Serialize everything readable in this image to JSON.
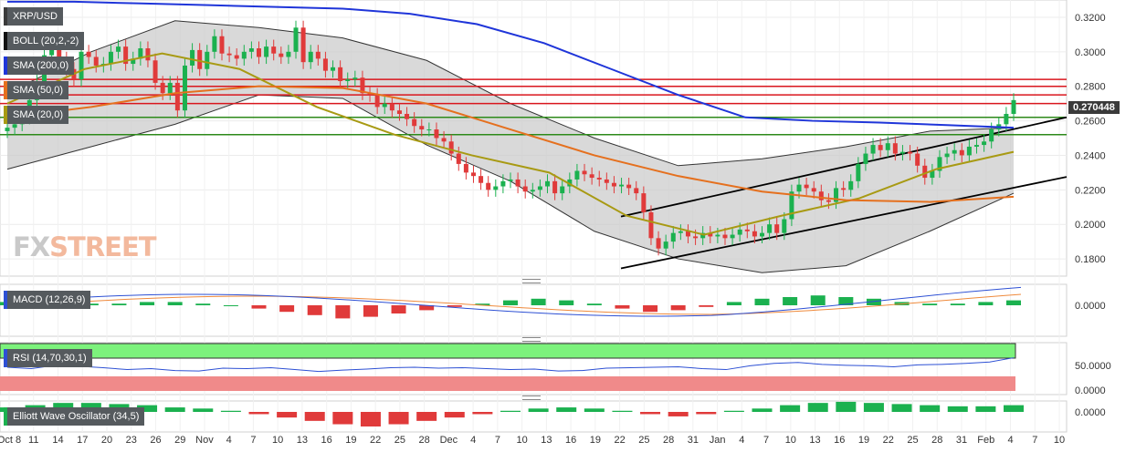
{
  "legends": {
    "symbol": "XRP/USD",
    "boll": "BOLL (20,2,-2)",
    "sma200": "SMA (200,0)",
    "sma50": "SMA (50,0)",
    "sma20": "SMA (20,0)",
    "macd": "MACD (12,26,9)",
    "rsi": "RSI (14,70,30,1)",
    "ewo": "Elliott Wave Oscillator (34,5)"
  },
  "logo": {
    "part1": "FX",
    "part2": "STREET"
  },
  "price_tag": "0.270448",
  "colors": {
    "up": "#1bb14f",
    "down": "#e03a3a",
    "sma200": "#1f35d9",
    "sma50": "#e5701e",
    "sma20": "#a89a13",
    "boll_fill": "#c9c9c9",
    "res": "#d9161d",
    "sup": "#2d8a1a",
    "rsi_green": "#7cf27c",
    "rsi_red": "#f08a8a",
    "macd_line": "#2d50d4",
    "signal_line": "#ef8a3c"
  },
  "chart_data": [
    {
      "type": "candlestick",
      "title": "XRP/USD",
      "ylim": [
        0.17,
        0.33
      ],
      "y_ticks": [
        "0.3200",
        "0.3000",
        "0.2800",
        "0.2600",
        "0.2400",
        "0.2200",
        "0.2000",
        "0.1800"
      ],
      "x_tick_labels": [
        "Oct 8",
        "11",
        "14",
        "17",
        "20",
        "23",
        "26",
        "29",
        "Nov",
        "4",
        "7",
        "10",
        "13",
        "16",
        "19",
        "22",
        "25",
        "28",
        "Dec",
        "4",
        "7",
        "10",
        "13",
        "16",
        "19",
        "22",
        "25",
        "28",
        "31",
        "Jan",
        "4",
        "7",
        "10",
        "13",
        "16",
        "19",
        "22",
        "25",
        "28",
        "31",
        "Feb",
        "4",
        "7",
        "10"
      ],
      "series_close": [
        0.256,
        0.258,
        0.262,
        0.272,
        0.283,
        0.298,
        0.305,
        0.296,
        0.29,
        0.284,
        0.3,
        0.297,
        0.292,
        0.293,
        0.3,
        0.303,
        0.293,
        0.296,
        0.302,
        0.295,
        0.282,
        0.276,
        0.282,
        0.266,
        0.292,
        0.301,
        0.29,
        0.3,
        0.309,
        0.299,
        0.298,
        0.296,
        0.3,
        0.302,
        0.297,
        0.303,
        0.299,
        0.297,
        0.3,
        0.314,
        0.294,
        0.3,
        0.296,
        0.289,
        0.291,
        0.283,
        0.284,
        0.285,
        0.276,
        0.275,
        0.268,
        0.27,
        0.266,
        0.264,
        0.261,
        0.257,
        0.255,
        0.255,
        0.25,
        0.248,
        0.241,
        0.235,
        0.23,
        0.228,
        0.224,
        0.22,
        0.222,
        0.225,
        0.226,
        0.222,
        0.219,
        0.22,
        0.222,
        0.225,
        0.218,
        0.222,
        0.226,
        0.231,
        0.229,
        0.227,
        0.226,
        0.224,
        0.222,
        0.223,
        0.221,
        0.218,
        0.207,
        0.192,
        0.186,
        0.19,
        0.195,
        0.196,
        0.193,
        0.192,
        0.195,
        0.193,
        0.194,
        0.192,
        0.194,
        0.197,
        0.196,
        0.193,
        0.195,
        0.2,
        0.195,
        0.203,
        0.219,
        0.223,
        0.221,
        0.219,
        0.214,
        0.213,
        0.221,
        0.22,
        0.225,
        0.235,
        0.241,
        0.246,
        0.243,
        0.247,
        0.241,
        0.242,
        0.241,
        0.234,
        0.227,
        0.231,
        0.239,
        0.241,
        0.243,
        0.24,
        0.245,
        0.246,
        0.248,
        0.255,
        0.258,
        0.264,
        0.272
      ],
      "ma_sma200": [
        0.329,
        0.329,
        0.328,
        0.327,
        0.326,
        0.325,
        0.322,
        0.316,
        0.305,
        0.29,
        0.275,
        0.262,
        0.26,
        0.259,
        0.2575,
        0.256
      ],
      "ma_sma50": [
        0.262,
        0.268,
        0.276,
        0.28,
        0.279,
        0.27,
        0.255,
        0.24,
        0.228,
        0.219,
        0.214,
        0.213,
        0.216
      ],
      "ma_sma20": [
        0.27,
        0.29,
        0.299,
        0.29,
        0.268,
        0.252,
        0.24,
        0.23,
        0.205,
        0.194,
        0.205,
        0.215,
        0.232,
        0.242
      ],
      "boll_upper": [
        0.276,
        0.3,
        0.318,
        0.314,
        0.308,
        0.295,
        0.27,
        0.25,
        0.234,
        0.238,
        0.245,
        0.254,
        0.256
      ],
      "boll_lower": [
        0.232,
        0.245,
        0.258,
        0.275,
        0.273,
        0.246,
        0.225,
        0.196,
        0.18,
        0.172,
        0.176,
        0.196,
        0.218
      ],
      "resistance_levels": [
        0.284,
        0.28,
        0.275,
        0.27
      ],
      "support_levels": [
        0.262,
        0.252
      ]
    },
    {
      "type": "bar",
      "title": "MACD (12,26,9)",
      "y_ticks": [
        "0.0000"
      ],
      "histogram": [
        0.002,
        0.003,
        0.002,
        0.001,
        0.001,
        0.002,
        0.002,
        0.001,
        0.0,
        -0.002,
        -0.004,
        -0.006,
        -0.008,
        -0.007,
        -0.005,
        -0.003,
        -0.001,
        0.001,
        0.003,
        0.004,
        0.003,
        0.001,
        -0.002,
        -0.004,
        -0.003,
        -0.001,
        0.002,
        0.004,
        0.005,
        0.006,
        0.005,
        0.004,
        0.002,
        0.001,
        0.001,
        0.002,
        0.003
      ]
    },
    {
      "type": "line",
      "title": "RSI (14,70,30,1)",
      "y_ticks": [
        "50.0000",
        "0.0000"
      ],
      "values": [
        52,
        49,
        56,
        54,
        51,
        47,
        49,
        45,
        44,
        50,
        49,
        51,
        47,
        43,
        46,
        48,
        51,
        52,
        50,
        51,
        49,
        47,
        48,
        44,
        45,
        50,
        51,
        52,
        53,
        49,
        47,
        55,
        60,
        62,
        58,
        56,
        55,
        53,
        57,
        58,
        60,
        63,
        72
      ]
    },
    {
      "type": "bar",
      "title": "Elliott Wave Oscillator (34,5)",
      "y_ticks": [
        "0.0000"
      ],
      "values": [
        0.004,
        0.006,
        0.008,
        0.008,
        0.007,
        0.006,
        0.004,
        0.003,
        0.001,
        -0.002,
        -0.005,
        -0.008,
        -0.011,
        -0.013,
        -0.011,
        -0.008,
        -0.005,
        -0.002,
        0.001,
        0.003,
        0.004,
        0.003,
        0.001,
        -0.002,
        -0.004,
        -0.002,
        0.001,
        0.003,
        0.006,
        0.008,
        0.009,
        0.008,
        0.007,
        0.006,
        0.005,
        0.005,
        0.006
      ]
    }
  ]
}
